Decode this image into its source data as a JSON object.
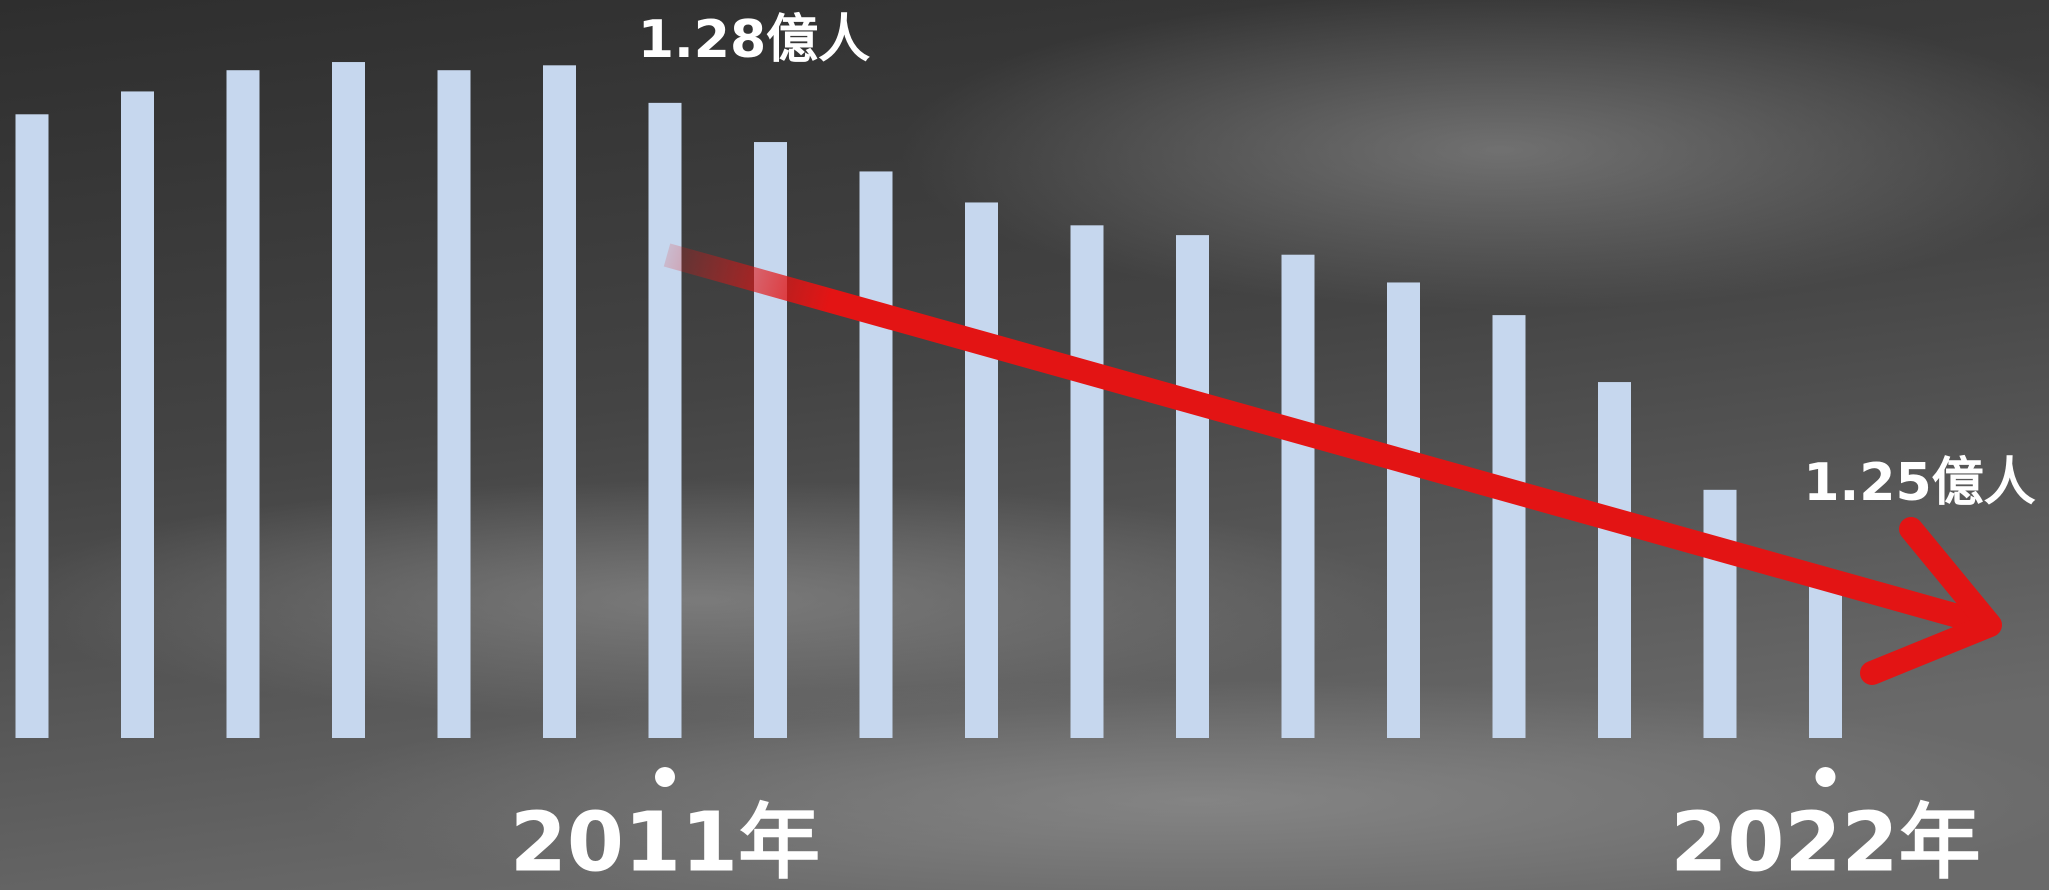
{
  "chart_data": {
    "type": "bar",
    "categories": [
      null,
      null,
      null,
      null,
      null,
      null,
      "2011年",
      null,
      null,
      null,
      null,
      null,
      null,
      null,
      null,
      null,
      null,
      "2022年"
    ],
    "values": [
      1.2776,
      1.279,
      1.2803,
      1.2808,
      1.2803,
      1.2806,
      1.2783,
      1.2759,
      1.2741,
      1.2722,
      1.2708,
      1.2702,
      1.269,
      1.2673,
      1.2653,
      1.2612,
      1.2546,
      1.2495
    ],
    "value_labels": [
      null,
      null,
      null,
      null,
      null,
      null,
      "1.28億人",
      null,
      null,
      null,
      null,
      null,
      null,
      null,
      null,
      null,
      null,
      "1.25億人"
    ],
    "color": "#c6d7ee",
    "ylim": [
      1.2394,
      1.2846
    ]
  }
}
